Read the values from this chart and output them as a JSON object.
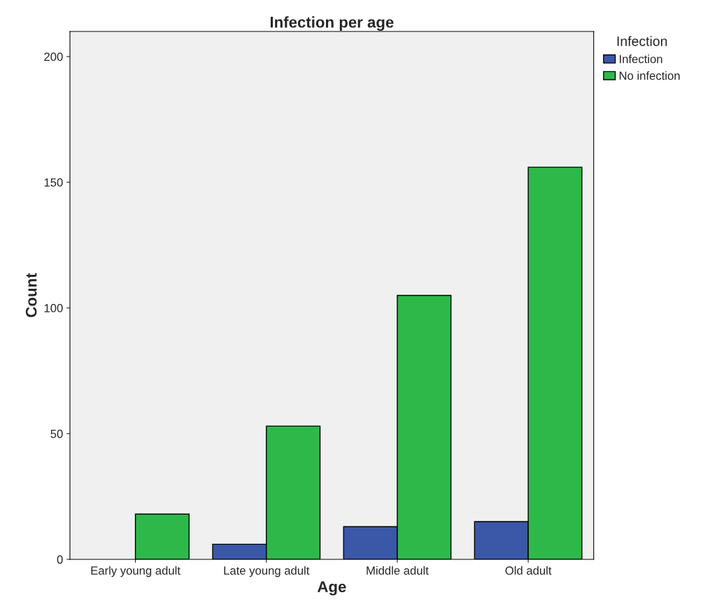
{
  "chart_data": {
    "type": "bar",
    "title": "Infection per age",
    "xlabel": "Age",
    "ylabel": "Count",
    "legend_title": "Infection",
    "categories": [
      "Early young adult",
      "Late young adult",
      "Middle adult",
      "Old adult"
    ],
    "series": [
      {
        "name": "Infection",
        "color": "#3b57a8",
        "values": [
          null,
          6,
          13,
          15
        ]
      },
      {
        "name": "No infection",
        "color": "#2eb84a",
        "values": [
          18,
          53,
          105,
          156
        ]
      }
    ],
    "ylim": [
      0,
      210
    ],
    "yticks": [
      0,
      50,
      100,
      150,
      200
    ],
    "grid": false,
    "legend": "top right"
  }
}
